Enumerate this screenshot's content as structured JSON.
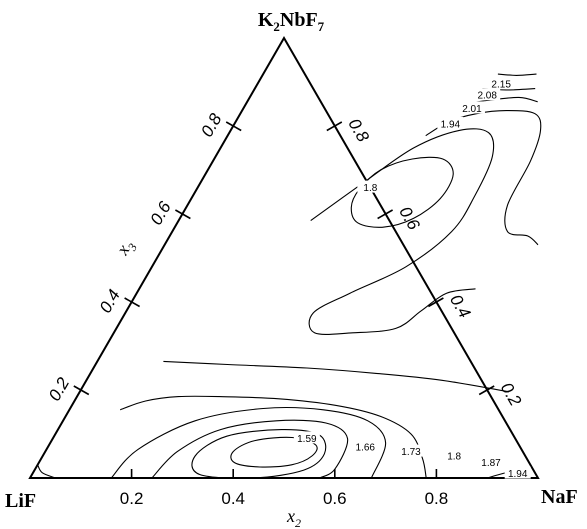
{
  "chart_data": {
    "type": "ternary-contour",
    "vertices": {
      "top": {
        "main": "K",
        "sub1": "2",
        "mid": "NbF",
        "sub2": "7"
      },
      "left": "LiF",
      "right": "NaF"
    },
    "axis_labels": {
      "x2": {
        "main": "x",
        "sub": "2"
      },
      "x3": {
        "main": "x",
        "sub": "3"
      }
    },
    "ticks": {
      "bottom": [
        "0.2",
        "0.4",
        "0.6",
        "0.8"
      ],
      "left": [
        "0.2",
        "0.4",
        "0.6",
        "0.8"
      ],
      "right": [
        "0.2",
        "0.4",
        "0.6",
        "0.8"
      ]
    },
    "tick_values": [
      0.2,
      0.4,
      0.6,
      0.8
    ],
    "contour_levels": [
      1.59,
      1.66,
      1.73,
      1.8,
      1.87,
      1.94,
      2.01,
      2.08,
      2.15
    ],
    "contour_labels": [
      {
        "text": "2.15",
        "x2": 0.48,
        "x3": 0.895
      },
      {
        "text": "2.08",
        "x2": 0.465,
        "x3": 0.87
      },
      {
        "text": "2.01",
        "x2": 0.45,
        "x3": 0.84
      },
      {
        "text": "1.94",
        "x2": 0.425,
        "x3": 0.805
      },
      {
        "text": "1.8",
        "x2": 0.34,
        "x3": 0.66
      },
      {
        "text": "1.59",
        "x2": 0.5,
        "x3": 0.09
      },
      {
        "text": "1.66",
        "x2": 0.625,
        "x3": 0.07
      },
      {
        "text": "1.73",
        "x2": 0.72,
        "x3": 0.06
      },
      {
        "text": "1.8",
        "x2": 0.81,
        "x3": 0.05
      },
      {
        "text": "1.87",
        "x2": 0.89,
        "x3": 0.035
      },
      {
        "text": "1.94",
        "x2": 0.955,
        "x3": 0.01
      }
    ],
    "contours": [
      {
        "level": 2.15,
        "points": [
          [
            0.462,
            0.918
          ],
          [
            0.5,
            0.915
          ],
          [
            0.538,
            0.918
          ]
        ]
      },
      {
        "level": 2.08,
        "points": [
          [
            0.448,
            0.885
          ],
          [
            0.5,
            0.882
          ],
          [
            0.552,
            0.885
          ]
        ]
      },
      {
        "level": 2.01,
        "points": [
          [
            0.43,
            0.85
          ],
          [
            0.47,
            0.858
          ],
          [
            0.53,
            0.865
          ],
          [
            0.572,
            0.855
          ]
        ]
      },
      {
        "level": 1.94,
        "points": [
          [
            0.39,
            0.778
          ],
          [
            0.42,
            0.81
          ],
          [
            0.465,
            0.828
          ],
          [
            0.52,
            0.835
          ],
          [
            0.58,
            0.828
          ],
          [
            0.61,
            0.79
          ],
          [
            0.625,
            0.72
          ],
          [
            0.63,
            0.62
          ],
          [
            0.66,
            0.56
          ],
          [
            0.705,
            0.55
          ],
          [
            0.735,
            0.53
          ]
        ]
      },
      {
        "level": 1.8,
        "closed": true,
        "points": [
          [
            0.32,
            0.655
          ],
          [
            0.34,
            0.7
          ],
          [
            0.39,
            0.725
          ],
          [
            0.45,
            0.725
          ],
          [
            0.488,
            0.69
          ],
          [
            0.49,
            0.635
          ],
          [
            0.46,
            0.59
          ],
          [
            0.41,
            0.57
          ],
          [
            0.355,
            0.58
          ],
          [
            0.325,
            0.615
          ]
        ]
      },
      {
        "level": 1.87,
        "points": [
          [
            0.26,
            0.585
          ],
          [
            0.32,
            0.67
          ],
          [
            0.38,
            0.75
          ],
          [
            0.45,
            0.79
          ],
          [
            0.51,
            0.785
          ],
          [
            0.545,
            0.73
          ],
          [
            0.555,
            0.64
          ],
          [
            0.55,
            0.56
          ],
          [
            0.5,
            0.48
          ],
          [
            0.42,
            0.42
          ],
          [
            0.37,
            0.375
          ],
          [
            0.395,
            0.33
          ],
          [
            0.47,
            0.33
          ],
          [
            0.55,
            0.34
          ],
          [
            0.58,
            0.38
          ],
          [
            0.61,
            0.42
          ],
          [
            0.662,
            0.43
          ]
        ]
      },
      {
        "level": 1.94,
        "points": [
          [
            0.13,
            0.265
          ],
          [
            0.26,
            0.258
          ],
          [
            0.42,
            0.25
          ],
          [
            0.56,
            0.238
          ],
          [
            0.7,
            0.222
          ],
          [
            0.845,
            0.196
          ]
        ]
      },
      {
        "level": 1.87,
        "points": [
          [
            0.1,
            0.155
          ],
          [
            0.14,
            0.175
          ],
          [
            0.2,
            0.185
          ],
          [
            0.28,
            0.185
          ],
          [
            0.4,
            0.18
          ],
          [
            0.52,
            0.165
          ],
          [
            0.62,
            0.14
          ],
          [
            0.7,
            0.1
          ],
          [
            0.75,
            0.045
          ],
          [
            0.78,
            0.0
          ]
        ]
      },
      {
        "level": 1.8,
        "points": [
          [
            0.16,
            0.0
          ],
          [
            0.18,
            0.065
          ],
          [
            0.26,
            0.13
          ],
          [
            0.38,
            0.158
          ],
          [
            0.5,
            0.155
          ],
          [
            0.6,
            0.13
          ],
          [
            0.66,
            0.08
          ],
          [
            0.672,
            0.0
          ]
        ]
      },
      {
        "level": 1.73,
        "points": [
          [
            0.24,
            0.0
          ],
          [
            0.26,
            0.06
          ],
          [
            0.32,
            0.11
          ],
          [
            0.42,
            0.13
          ],
          [
            0.52,
            0.125
          ],
          [
            0.58,
            0.09
          ],
          [
            0.59,
            0.02
          ],
          [
            0.57,
            0.0
          ]
        ]
      },
      {
        "level": 1.66,
        "closed": true,
        "points": [
          [
            0.3,
            0.05
          ],
          [
            0.34,
            0.095
          ],
          [
            0.44,
            0.11
          ],
          [
            0.52,
            0.098
          ],
          [
            0.552,
            0.055
          ],
          [
            0.53,
            0.018
          ],
          [
            0.44,
            0.0
          ],
          [
            0.33,
            0.008
          ]
        ]
      },
      {
        "level": 1.59,
        "closed": true,
        "points": [
          [
            0.37,
            0.06
          ],
          [
            0.4,
            0.085
          ],
          [
            0.47,
            0.092
          ],
          [
            0.525,
            0.075
          ],
          [
            0.53,
            0.05
          ],
          [
            0.5,
            0.03
          ],
          [
            0.44,
            0.025
          ],
          [
            0.385,
            0.035
          ]
        ]
      },
      {
        "level": 1.94,
        "points": [
          [
            0.9,
            0.0
          ],
          [
            0.925,
            0.01
          ],
          [
            0.96,
            0.02
          ]
        ]
      },
      {
        "level": 2.01,
        "points": [
          [
            0.0,
            0.03
          ],
          [
            0.018,
            0.012
          ],
          [
            0.05,
            0.0
          ]
        ]
      }
    ]
  }
}
